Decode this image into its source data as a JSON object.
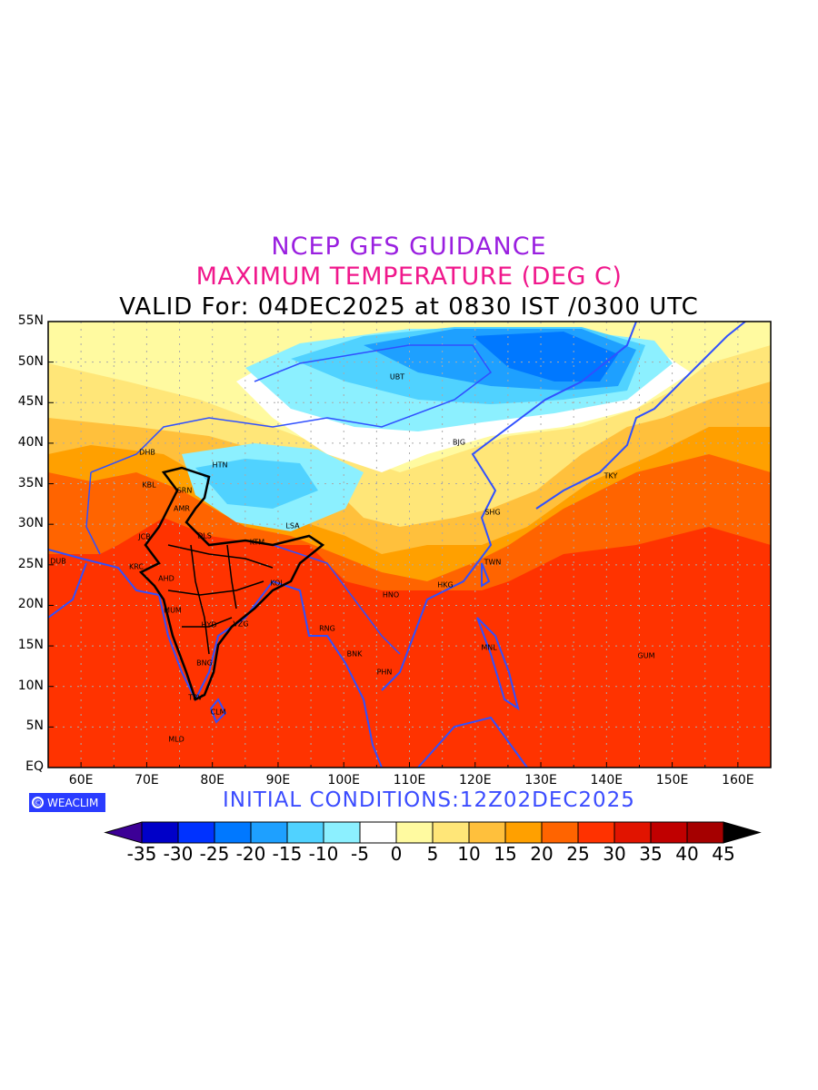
{
  "title": {
    "line1": "NCEP GFS GUIDANCE",
    "line2": "MAXIMUM TEMPERATURE (DEG C)",
    "line3": "VALID For: 04DEC2025 at 0830 IST /0300 UTC"
  },
  "axes": {
    "lat_labels": [
      "55N",
      "50N",
      "45N",
      "40N",
      "35N",
      "30N",
      "25N",
      "20N",
      "15N",
      "10N",
      "5N",
      "EQ"
    ],
    "lon_labels": [
      "60E",
      "70E",
      "80E",
      "90E",
      "100E",
      "110E",
      "120E",
      "130E",
      "140E",
      "150E",
      "160E"
    ]
  },
  "cities": [
    "UBT",
    "BJG",
    "TKY",
    "SHG",
    "TWN",
    "HKG",
    "HNO",
    "RNG",
    "BNK",
    "PHN",
    "MNL",
    "GUM",
    "DHB",
    "HTN",
    "KBL",
    "SRN",
    "AMR",
    "JCB",
    "DLS",
    "KTM",
    "LSA",
    "DUB",
    "KRC",
    "AHD",
    "MUM",
    "KOL",
    "HYD",
    "VZG",
    "BNG",
    "TRV",
    "CLM",
    "MLD"
  ],
  "logo": {
    "symbol": "©",
    "text": "WEACLIM"
  },
  "initial_conditions": "INITIAL  CONDITIONS:12Z02DEC2025",
  "colorbar": {
    "labels": [
      "-35",
      "-30",
      "-25",
      "-20",
      "-15",
      "-10",
      "-5",
      "0",
      "5",
      "10",
      "15",
      "20",
      "25",
      "30",
      "35",
      "40",
      "45"
    ],
    "colors": [
      "#3c0096",
      "#0000c8",
      "#0032ff",
      "#0078ff",
      "#1ea0ff",
      "#50d2ff",
      "#8cf0ff",
      "#ffffff",
      "#fffaa0",
      "#ffe678",
      "#ffc03c",
      "#ffa000",
      "#ff6400",
      "#ff3200",
      "#e11400",
      "#c00000",
      "#a50000",
      "#000000"
    ]
  }
}
